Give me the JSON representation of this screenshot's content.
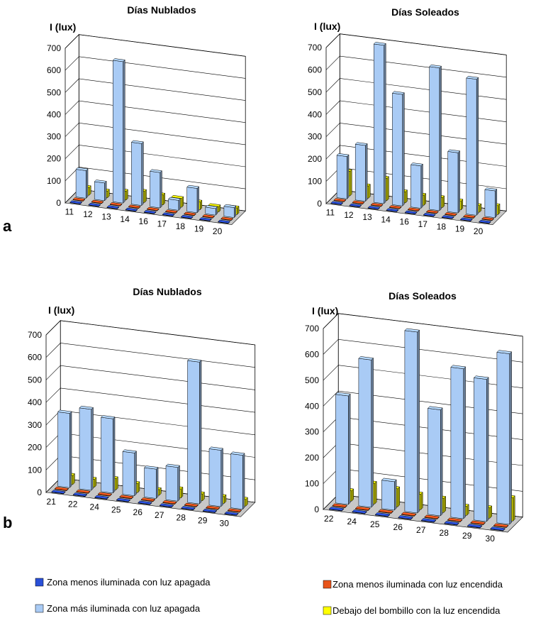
{
  "panels": [
    {
      "label": "a"
    },
    {
      "label": "b"
    }
  ],
  "legend": [
    {
      "label": "Zona menos iluminada con luz apagada",
      "color": "#2a50d8"
    },
    {
      "label": "Zona menos iluminada con luz encendida",
      "color": "#e8541a"
    },
    {
      "label": "Zona más iluminada  con luz apagada",
      "color": "#a9cbf5"
    },
    {
      "label": "Debajo del bombillo con la luz encendida",
      "color": "#ffff00"
    }
  ],
  "chart_data": [
    {
      "type": "bar",
      "title": "Días Nublados",
      "ylabel": "I (lux)",
      "ylim": [
        0,
        700
      ],
      "yticks": [
        0,
        100,
        200,
        300,
        400,
        500,
        600,
        700
      ],
      "categories": [
        "11",
        "12",
        "13",
        "14",
        "16",
        "17",
        "18",
        "19",
        "20"
      ],
      "series": [
        {
          "name": "Zona menos iluminada con luz apagada",
          "values": [
            2,
            2,
            2,
            2,
            2,
            2,
            2,
            2,
            2
          ]
        },
        {
          "name": "Zona menos iluminada con luz encendida",
          "values": [
            2,
            2,
            2,
            2,
            2,
            2,
            2,
            2,
            2
          ]
        },
        {
          "name": "Zona más iluminada  con luz apagada",
          "values": [
            125,
            80,
            640,
            280,
            160,
            45,
            110,
            30,
            45
          ]
        },
        {
          "name": "Debajo del bombillo con la luz encendida",
          "values": [
            35,
            30,
            40,
            50,
            45,
            40,
            35,
            25,
            30
          ]
        }
      ]
    },
    {
      "type": "bar",
      "title": "Días Soleados",
      "ylabel": "I (lux)",
      "ylim": [
        0,
        700
      ],
      "yticks": [
        0,
        100,
        200,
        300,
        400,
        500,
        600,
        700
      ],
      "categories": [
        "11",
        "12",
        "13",
        "14",
        "16",
        "17",
        "18",
        "19",
        "20"
      ],
      "series": [
        {
          "name": "Zona menos iluminada con luz apagada",
          "values": [
            2,
            2,
            2,
            2,
            2,
            2,
            2,
            2,
            2
          ]
        },
        {
          "name": "Zona menos iluminada con luz encendida",
          "values": [
            2,
            2,
            2,
            2,
            2,
            2,
            2,
            2,
            2
          ]
        },
        {
          "name": "Zona más iluminada  con luz apagada",
          "values": [
            190,
            250,
            710,
            500,
            190,
            640,
            270,
            610,
            120
          ]
        },
        {
          "name": "Debajo del bombillo con la luz encendida",
          "values": [
            110,
            55,
            100,
            50,
            45,
            45,
            40,
            30,
            40
          ]
        }
      ]
    },
    {
      "type": "bar",
      "title": "Días Nublados",
      "ylabel": "I (lux)",
      "ylim": [
        0,
        700
      ],
      "yticks": [
        0,
        100,
        200,
        300,
        400,
        500,
        600,
        700
      ],
      "categories": [
        "21",
        "22",
        "24",
        "25",
        "26",
        "27",
        "28",
        "29",
        "30"
      ],
      "series": [
        {
          "name": "Zona menos iluminada con luz apagada",
          "values": [
            2,
            2,
            2,
            2,
            2,
            2,
            2,
            2,
            2
          ]
        },
        {
          "name": "Zona menos iluminada con luz encendida",
          "values": [
            2,
            2,
            2,
            2,
            2,
            2,
            2,
            2,
            2
          ]
        },
        {
          "name": "Zona más iluminada  con luz apagada",
          "values": [
            330,
            360,
            330,
            190,
            130,
            150,
            630,
            250,
            240
          ]
        },
        {
          "name": "Debajo del bombillo con la luz encendida",
          "values": [
            40,
            35,
            50,
            40,
            25,
            40,
            30,
            30,
            30
          ]
        }
      ]
    },
    {
      "type": "bar",
      "title": "Días Soleados",
      "ylabel": "I (lux)",
      "ylim": [
        0,
        700
      ],
      "yticks": [
        0,
        100,
        200,
        300,
        400,
        500,
        600,
        700
      ],
      "categories": [
        "22",
        "24",
        "25",
        "26",
        "27",
        "28",
        "29",
        "30"
      ],
      "series": [
        {
          "name": "Zona menos iluminada con luz apagada",
          "values": [
            2,
            2,
            2,
            2,
            2,
            2,
            2,
            2
          ]
        },
        {
          "name": "Zona menos iluminada con luz encendida",
          "values": [
            2,
            2,
            2,
            2,
            2,
            2,
            2,
            2
          ]
        },
        {
          "name": "Zona más iluminada  con luz apagada",
          "values": [
            420,
            570,
            110,
            700,
            410,
            580,
            550,
            660
          ]
        },
        {
          "name": "Debajo del bombillo con la luz encendida",
          "values": [
            40,
            80,
            70,
            60,
            55,
            35,
            40,
            90
          ]
        }
      ]
    }
  ]
}
